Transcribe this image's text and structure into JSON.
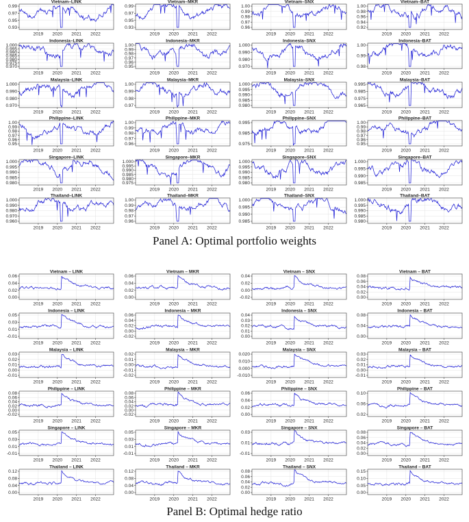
{
  "x_ticks": [
    "2019",
    "2020",
    "2021",
    "2022"
  ],
  "captions": {
    "panel_a": "Panel A: Optimal portfolio weights",
    "panel_b": "Panel B: Optimal hedge ratio"
  },
  "colors": {
    "line": "#1c1cd6",
    "grid": "#e3e3e3",
    "frame": "#333333"
  },
  "chart_data": [
    {
      "panel": "A",
      "type": "line",
      "x_range": [
        "2018",
        "2022-12"
      ],
      "charts": [
        {
          "title": "Vietnam–LINK",
          "yticks": [
            "0.99",
            "0.97",
            "0.95",
            "0.93"
          ]
        },
        {
          "title": "Vietnam–MKR",
          "yticks": [
            "0.99",
            "0.97",
            "0.95",
            "0.93"
          ]
        },
        {
          "title": "Vietnam–SNX",
          "yticks": [
            "1.00",
            "0.99",
            "0.98",
            "0.97",
            "0.96"
          ]
        },
        {
          "title": "Vietnam–BAT",
          "yticks": [
            "1.00",
            "0.98",
            "0.96",
            "0.94",
            "0.92"
          ]
        },
        {
          "title": "Indonesia–LINK",
          "yticks": [
            "1.000",
            "0.995",
            "0.990",
            "0.985",
            "0.980",
            "0.975",
            "0.970"
          ]
        },
        {
          "title": "Indonesia–MKR",
          "yticks": [
            "1.00",
            "0.99",
            "0.98",
            "0.97",
            "0.96",
            "0.95"
          ]
        },
        {
          "title": "Indonesia–SNX",
          "yticks": [
            "1.000",
            "0.990",
            "0.980",
            "0.970"
          ]
        },
        {
          "title": "Indonesia–BAT",
          "yticks": [
            "1.00",
            "0.99",
            "0.98"
          ]
        },
        {
          "title": "Malaysia–LINK",
          "yticks": [
            "1.000",
            "0.990",
            "0.980",
            "0.970"
          ]
        },
        {
          "title": "Malaysia–MKR",
          "yticks": [
            "1.00",
            "0.99",
            "0.98",
            "0.97"
          ]
        },
        {
          "title": "Malaysia–SNX",
          "yticks": [
            "1.000",
            "0.995",
            "0.990",
            "0.985",
            "0.980"
          ]
        },
        {
          "title": "Malaysia–BAT",
          "yticks": [
            "0.995",
            "0.985",
            "0.975",
            "0.965"
          ]
        },
        {
          "title": "Philippine–LINK",
          "yticks": [
            "1.00",
            "0.99",
            "0.98",
            "0.97",
            "0.96",
            "0.95"
          ]
        },
        {
          "title": "Philippine–MKR",
          "yticks": [
            "1.00",
            "0.99",
            "0.98",
            "0.97",
            "0.96"
          ]
        },
        {
          "title": "Philippine–SNX",
          "yticks": [
            "0.995",
            "0.985",
            "0.975"
          ]
        },
        {
          "title": "Philippine–BAT",
          "yticks": [
            "1.00",
            "0.99",
            "0.98",
            "0.97",
            "0.96",
            "0.95"
          ]
        },
        {
          "title": "Singapore–LINK",
          "yticks": [
            "1.000",
            "0.995",
            "0.990",
            "0.985",
            "0.980"
          ]
        },
        {
          "title": "Singapore–MKR",
          "yticks": [
            "1.000",
            "0.995",
            "0.990",
            "0.985",
            "0.980",
            "0.975"
          ]
        },
        {
          "title": "Singapore–SNX",
          "yticks": [
            "1.000",
            "0.995",
            "0.990",
            "0.985",
            "0.980"
          ]
        },
        {
          "title": "Singapore–BAT",
          "yticks": [
            "1.000",
            "0.995",
            "0.990",
            "0.985"
          ]
        },
        {
          "title": "Thailand–LINK",
          "yticks": [
            "1.000",
            "0.990",
            "0.980",
            "0.970",
            "0.960"
          ]
        },
        {
          "title": "Thailand–MKR",
          "yticks": [
            "1.00",
            "0.99",
            "0.98",
            "0.97",
            "0.96"
          ]
        },
        {
          "title": "Thailand–SNX",
          "yticks": [
            "1.000",
            "0.995",
            "0.990",
            "0.985"
          ]
        },
        {
          "title": "Thailand–BAT",
          "yticks": [
            "1.000",
            "0.995",
            "0.990",
            "0.985",
            "0.980"
          ]
        }
      ]
    },
    {
      "panel": "B",
      "type": "line",
      "x_range": [
        "2018",
        "2022-12"
      ],
      "charts": [
        {
          "title": "Vietnam – LINK",
          "yticks": [
            "0.06",
            "0.04",
            "0.02",
            "0.00"
          ]
        },
        {
          "title": "Vietnam – MKR",
          "yticks": [
            "0.06",
            "0.04",
            "0.02",
            "0.00"
          ]
        },
        {
          "title": "Vietnam – SNX",
          "yticks": [
            "0.04",
            "0.02",
            "0.00",
            "-0.02"
          ]
        },
        {
          "title": "Vietnam – BAT",
          "yticks": [
            "0.08",
            "0.06",
            "0.04",
            "0.02",
            "0.00"
          ]
        },
        {
          "title": "Indonesia – LINK",
          "yticks": [
            "0.05",
            "0.03",
            "0.01",
            "-0.01"
          ]
        },
        {
          "title": "Indonesia – MKR",
          "yticks": [
            "0.06",
            "0.04",
            "0.02",
            "0.00",
            "-0.02"
          ]
        },
        {
          "title": "Indonesia – SNX",
          "yticks": [
            "0.04",
            "0.03",
            "0.02",
            "0.01",
            "0.00"
          ]
        },
        {
          "title": "Indonesia – BAT",
          "yticks": [
            "0.08",
            "0.04",
            "0.00"
          ]
        },
        {
          "title": "Malaysia – LINK",
          "yticks": [
            "0.03",
            "0.02",
            "0.01",
            "0.00",
            "-0.01"
          ]
        },
        {
          "title": "Malaysia – MKR",
          "yticks": [
            "0.02",
            "0.01",
            "0.00",
            "-0.01",
            "-0.02"
          ]
        },
        {
          "title": "Malaysia – SNX",
          "yticks": [
            "0.020",
            "0.010",
            "0.000",
            "-0.010"
          ]
        },
        {
          "title": "Malaysia – BAT",
          "yticks": [
            "0.03",
            "0.02",
            "0.01",
            "0.00",
            "-0.01"
          ]
        },
        {
          "title": "Philippine – LINK",
          "yticks": [
            "0.08",
            "0.06",
            "0.04",
            "0.02",
            "0.00",
            "-0.02"
          ]
        },
        {
          "title": "Philippine – MKR",
          "yticks": [
            "0.08",
            "0.06",
            "0.04",
            "0.02",
            "0.00",
            "-0.02"
          ]
        },
        {
          "title": "Philippine – SNX",
          "yticks": [
            "0.06",
            "0.04",
            "0.02",
            "0.00"
          ]
        },
        {
          "title": "Philippine – BAT",
          "yticks": [
            "0.10",
            "0.06",
            "0.02"
          ]
        },
        {
          "title": "Singapore – LINK",
          "yticks": [
            "0.05",
            "0.03",
            "0.01",
            "-0.01"
          ]
        },
        {
          "title": "Singapore – MKR",
          "yticks": [
            "0.05",
            "0.03",
            "0.01",
            "-0.01"
          ]
        },
        {
          "title": "Singapore – SNX",
          "yticks": [
            "0.03",
            "0.01",
            "-0.01"
          ]
        },
        {
          "title": "Singapore – BAT",
          "yticks": [
            "0.08",
            "0.06",
            "0.04",
            "0.02",
            "0.00"
          ]
        },
        {
          "title": "Thailand – LINK",
          "yticks": [
            "0.12",
            "0.08",
            "0.04",
            "0.00"
          ]
        },
        {
          "title": "Thailand – MKR",
          "yticks": [
            "0.12",
            "0.08",
            "0.04",
            "0.00"
          ]
        },
        {
          "title": "Thailand – SNX",
          "yticks": [
            "0.08",
            "0.06",
            "0.04",
            "0.02",
            "0.00"
          ]
        },
        {
          "title": "Thailand – BAT",
          "yticks": [
            "0.15",
            "0.10",
            "0.05",
            "0.00"
          ]
        }
      ]
    }
  ]
}
